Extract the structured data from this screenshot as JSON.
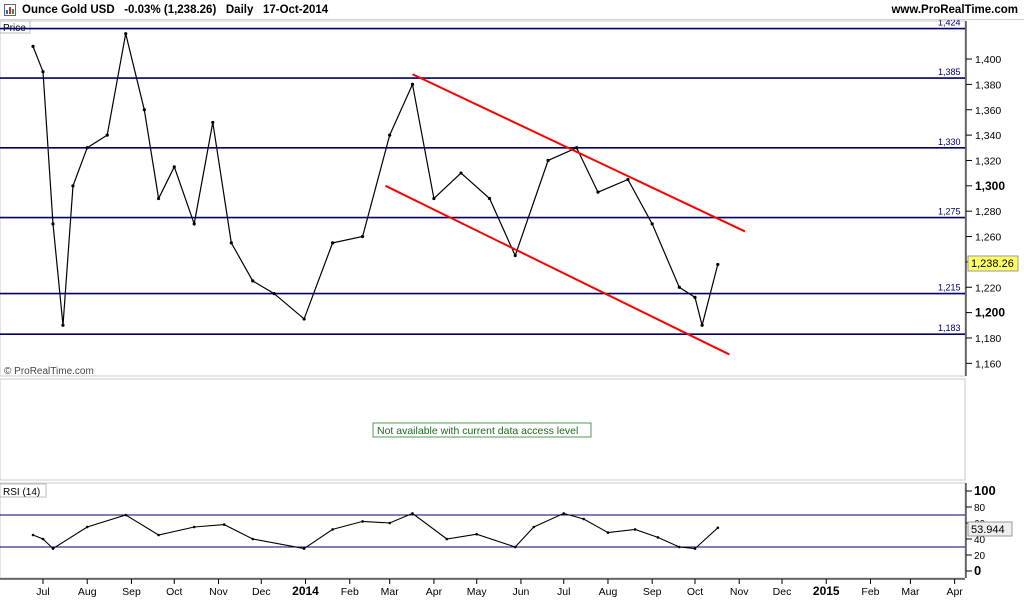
{
  "header": {
    "title": "Ounce Gold USD   -0.03% (1,238.26)   Daily   17-Oct-2014",
    "site": "www.ProRealTime.com",
    "icon": "chart-icon"
  },
  "price_panel": {
    "label": "Price",
    "watermark": "© ProRealTime.com",
    "current_price_tag": "1,238.26",
    "level_lines": [
      {
        "label": "1,424",
        "value": 1424
      },
      {
        "label": "1,385",
        "value": 1385
      },
      {
        "label": "1,330",
        "value": 1330
      },
      {
        "label": "1,275",
        "value": 1275
      },
      {
        "label": "1,215",
        "value": 1215
      },
      {
        "label": "1,183",
        "value": 1183
      }
    ],
    "colors": {
      "levels": "#000066",
      "trend": "#ff0000",
      "price": "#000000",
      "tag_bg": "#ffff66"
    }
  },
  "middle_panel": {
    "message": "Not available with current data access level",
    "message_color": "#226622"
  },
  "rsi_panel": {
    "label": "RSI (14)",
    "current_value_tag": "53.944",
    "upper_level": 70,
    "lower_level": 30
  },
  "chart_data": [
    {
      "type": "line",
      "title": "Ounce Gold USD",
      "series": [
        {
          "name": "Ounce Gold USD",
          "x": [
            "2013-06-24",
            "2013-07-01",
            "2013-07-08",
            "2013-07-15",
            "2013-07-22",
            "2013-08-01",
            "2013-08-15",
            "2013-08-28",
            "2013-09-10",
            "2013-09-20",
            "2013-10-01",
            "2013-10-15",
            "2013-10-28",
            "2013-11-10",
            "2013-11-25",
            "2013-12-10",
            "2013-12-31",
            "2014-01-20",
            "2014-02-10",
            "2014-03-01",
            "2014-03-17",
            "2014-04-01",
            "2014-04-20",
            "2014-05-10",
            "2014-05-28",
            "2014-06-20",
            "2014-07-10",
            "2014-07-25",
            "2014-08-15",
            "2014-09-01",
            "2014-09-20",
            "2014-10-01",
            "2014-10-06",
            "2014-10-17"
          ],
          "values": [
            1410,
            1390,
            1270,
            1190,
            1300,
            1330,
            1340,
            1420,
            1360,
            1290,
            1315,
            1270,
            1350,
            1255,
            1225,
            1215,
            1195,
            1255,
            1260,
            1340,
            1380,
            1290,
            1310,
            1290,
            1245,
            1320,
            1330,
            1295,
            1305,
            1270,
            1220,
            1212,
            1190,
            1238
          ]
        }
      ],
      "trendlines": [
        {
          "name": "upper",
          "from": {
            "x": "2014-03-17",
            "y": 1388
          },
          "to": {
            "x": "2014-11-05",
            "y": 1264
          }
        },
        {
          "name": "lower",
          "from": {
            "x": "2014-02-26",
            "y": 1300
          },
          "to": {
            "x": "2014-10-25",
            "y": 1167
          }
        }
      ],
      "ylim": [
        1150,
        1430
      ],
      "y_ticks": [
        "1,160",
        "1,180",
        "1,200",
        "1,220",
        "1,240",
        "1,260",
        "1,280",
        "1,300",
        "1,320",
        "1,340",
        "1,360",
        "1,380",
        "1,400"
      ],
      "y_tick_values": [
        1160,
        1180,
        1200,
        1220,
        1240,
        1260,
        1280,
        1300,
        1320,
        1340,
        1360,
        1380,
        1400
      ],
      "y_major": [
        1200,
        1300
      ],
      "grid": false
    },
    {
      "type": "line",
      "title": "RSI (14)",
      "series": [
        {
          "name": "RSI (14)",
          "x": [
            "2013-06-24",
            "2013-07-01",
            "2013-07-08",
            "2013-08-01",
            "2013-08-28",
            "2013-09-20",
            "2013-10-15",
            "2013-11-05",
            "2013-11-25",
            "2013-12-31",
            "2014-01-20",
            "2014-02-10",
            "2014-03-01",
            "2014-03-17",
            "2014-04-10",
            "2014-05-01",
            "2014-05-28",
            "2014-06-10",
            "2014-07-01",
            "2014-07-15",
            "2014-08-01",
            "2014-08-20",
            "2014-09-05",
            "2014-09-20",
            "2014-10-01",
            "2014-10-17"
          ],
          "values": [
            45,
            40,
            28,
            55,
            70,
            45,
            55,
            58,
            40,
            28,
            52,
            62,
            60,
            72,
            40,
            46,
            30,
            55,
            72,
            65,
            48,
            52,
            42,
            30,
            28,
            54
          ]
        }
      ],
      "ylim": [
        0,
        100
      ],
      "y_ticks": [
        "0",
        "20",
        "40",
        "60",
        "80",
        "100"
      ],
      "y_tick_values": [
        0,
        20,
        40,
        60,
        80,
        100
      ],
      "levels": [
        30,
        70
      ]
    }
  ],
  "x_axis": {
    "labels": [
      {
        "label": "Jul",
        "date": "2013-07-01"
      },
      {
        "label": "Aug",
        "date": "2013-08-01"
      },
      {
        "label": "Sep",
        "date": "2013-09-01"
      },
      {
        "label": "Oct",
        "date": "2013-10-01"
      },
      {
        "label": "Nov",
        "date": "2013-11-01"
      },
      {
        "label": "Dec",
        "date": "2013-12-01"
      },
      {
        "label": "2014",
        "date": "2014-01-01",
        "bold": true
      },
      {
        "label": "Feb",
        "date": "2014-02-01"
      },
      {
        "label": "Mar",
        "date": "2014-03-01"
      },
      {
        "label": "Apr",
        "date": "2014-04-01"
      },
      {
        "label": "May",
        "date": "2014-05-01"
      },
      {
        "label": "Jun",
        "date": "2014-06-01"
      },
      {
        "label": "Jul",
        "date": "2014-07-01"
      },
      {
        "label": "Aug",
        "date": "2014-08-01"
      },
      {
        "label": "Sep",
        "date": "2014-09-01"
      },
      {
        "label": "Oct",
        "date": "2014-10-01"
      },
      {
        "label": "Nov",
        "date": "2014-11-01"
      },
      {
        "label": "Dec",
        "date": "2014-12-01"
      },
      {
        "label": "2015",
        "date": "2015-01-01",
        "bold": true
      },
      {
        "label": "Feb",
        "date": "2015-02-01"
      },
      {
        "label": "Mar",
        "date": "2015-03-01"
      },
      {
        "label": "Apr",
        "date": "2015-04-01"
      }
    ]
  }
}
